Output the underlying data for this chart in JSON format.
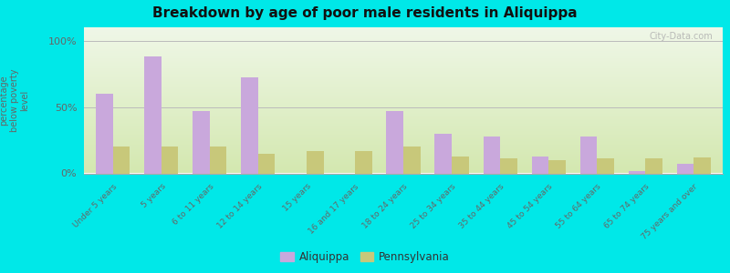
{
  "title": "Breakdown by age of poor male residents in Aliquippa",
  "ylabel": "percentage\nbelow poverty\nlevel",
  "categories": [
    "Under 5 years",
    "5 years",
    "6 to 11 years",
    "12 to 14 years",
    "15 years",
    "16 and 17 years",
    "18 to 24 years",
    "25 to 34 years",
    "35 to 44 years",
    "45 to 54 years",
    "55 to 64 years",
    "65 to 74 years",
    "75 years and over"
  ],
  "aliquippa": [
    60,
    88,
    47,
    72,
    0,
    0,
    47,
    30,
    28,
    13,
    28,
    2,
    7
  ],
  "pennsylvania": [
    20,
    20,
    20,
    15,
    17,
    17,
    20,
    13,
    11,
    10,
    11,
    11,
    12
  ],
  "aliquippa_color": "#c9a8dc",
  "pennsylvania_color": "#c8c87a",
  "bg_bottom_color": "#d4e8b0",
  "bg_top_color": "#f0f8e8",
  "outer_background": "#00e8e8",
  "title_color": "#111111",
  "ylim": [
    0,
    110
  ],
  "bar_width": 0.35,
  "legend_labels": [
    "Aliquippa",
    "Pennsylvania"
  ],
  "watermark": "City-Data.com"
}
